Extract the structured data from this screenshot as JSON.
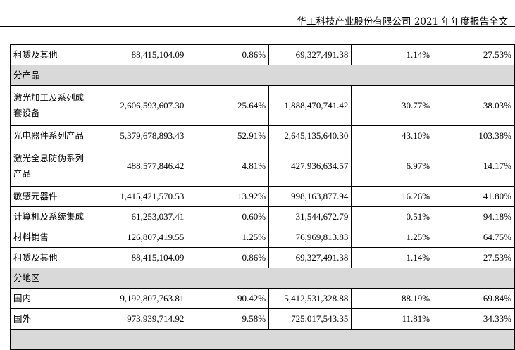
{
  "header": {
    "title": "华工科技产业股份有限公司 2021 年年度报告全文"
  },
  "table": {
    "rows": [
      {
        "type": "data",
        "name": "租赁及其他",
        "amount": "88,415,104.09",
        "share": "0.86%",
        "prev_amount": "69,327,491.38",
        "prev_share": "1.14%",
        "change": "27.53%"
      },
      {
        "type": "section",
        "name": "分产品"
      },
      {
        "type": "data",
        "name": "激光加工及系列成套设备",
        "amount": "2,606,593,607.30",
        "share": "25.64%",
        "prev_amount": "1,888,470,741.42",
        "prev_share": "30.77%",
        "change": "38.03%"
      },
      {
        "type": "data",
        "name": "光电器件系列产品",
        "amount": "5,379,678,893.43",
        "share": "52.91%",
        "prev_amount": "2,645,135,640.30",
        "prev_share": "43.10%",
        "change": "103.38%"
      },
      {
        "type": "data",
        "name": "激光全息防伪系列产品",
        "amount": "488,577,846.42",
        "share": "4.81%",
        "prev_amount": "427,936,634.57",
        "prev_share": "6.97%",
        "change": "14.17%"
      },
      {
        "type": "data",
        "name": "敏感元器件",
        "amount": "1,415,421,570.53",
        "share": "13.92%",
        "prev_amount": "998,163,877.94",
        "prev_share": "16.26%",
        "change": "41.80%"
      },
      {
        "type": "data",
        "name": "计算机及系统集成",
        "amount": "61,253,037.41",
        "share": "0.60%",
        "prev_amount": "31,544,672.79",
        "prev_share": "0.51%",
        "change": "94.18%"
      },
      {
        "type": "data",
        "name": "材料销售",
        "amount": "126,807,419.55",
        "share": "1.25%",
        "prev_amount": "76,969,813.83",
        "prev_share": "1.25%",
        "change": "64.75%"
      },
      {
        "type": "data",
        "name": "租赁及其他",
        "amount": "88,415,104.09",
        "share": "0.86%",
        "prev_amount": "69,327,491.38",
        "prev_share": "1.14%",
        "change": "27.53%"
      },
      {
        "type": "section",
        "name": "分地区"
      },
      {
        "type": "data",
        "name": "国内",
        "amount": "9,192,807,763.81",
        "share": "90.42%",
        "prev_amount": "5,412,531,328.88",
        "prev_share": "88.19%",
        "change": "69.84%"
      },
      {
        "type": "data",
        "name": "国外",
        "amount": "973,939,714.92",
        "share": "9.58%",
        "prev_amount": "725,017,543.35",
        "prev_share": "11.81%",
        "change": "34.33%"
      },
      {
        "type": "section",
        "name": ""
      }
    ]
  }
}
